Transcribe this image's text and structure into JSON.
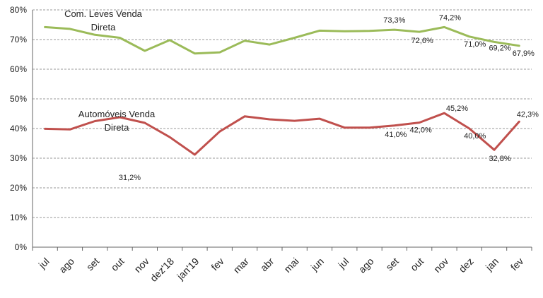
{
  "chart_data": {
    "type": "line",
    "categories": [
      "jul",
      "ago",
      "set",
      "out",
      "nov",
      "dez'18",
      "jan'19",
      "fev",
      "mar",
      "abr",
      "mai",
      "jun",
      "jul",
      "ago",
      "set",
      "out",
      "nov",
      "dez",
      "jan",
      "fev"
    ],
    "ylim": [
      0,
      80
    ],
    "yticks": [
      "0%",
      "10%",
      "20%",
      "30%",
      "40%",
      "50%",
      "60%",
      "70%",
      "80%"
    ],
    "grid": true,
    "series": [
      {
        "name": "Com. Leves Venda Direta",
        "name_lines": [
          "Com. Leves Venda",
          "Direta"
        ],
        "color": "#9BBB59",
        "values": [
          74.2,
          73.6,
          71.6,
          70.6,
          66.2,
          69.8,
          65.3,
          65.7,
          69.6,
          68.3,
          70.6,
          73.0,
          72.8,
          72.9,
          73.3,
          72.6,
          74.2,
          71.0,
          69.2,
          67.9
        ],
        "labels": [
          {
            "index": 14,
            "text": "73,3%"
          },
          {
            "index": 15,
            "text": "72,6%"
          },
          {
            "index": 16,
            "text": "74,2%"
          },
          {
            "index": 17,
            "text": "71,0%"
          },
          {
            "index": 18,
            "text": "69,2%"
          },
          {
            "index": 19,
            "text": "67,9%"
          }
        ]
      },
      {
        "name": "Automóveis Venda Direta",
        "name_lines": [
          "Automóveis Venda",
          "Direta"
        ],
        "color": "#C0504D",
        "values": [
          39.9,
          39.7,
          42.5,
          43.8,
          41.9,
          37.1,
          31.2,
          39.0,
          44.1,
          43.1,
          42.6,
          43.3,
          40.3,
          40.3,
          41.0,
          42.0,
          45.2,
          40.0,
          32.8,
          42.3
        ],
        "labels": [
          {
            "index": 6,
            "text": "31,2%"
          },
          {
            "index": 14,
            "text": "41,0%"
          },
          {
            "index": 15,
            "text": "42,0%"
          },
          {
            "index": 16,
            "text": "45,2%"
          },
          {
            "index": 17,
            "text": "40,0%"
          },
          {
            "index": 18,
            "text": "32,8%"
          },
          {
            "index": 19,
            "text": "42,3%"
          }
        ]
      }
    ]
  }
}
